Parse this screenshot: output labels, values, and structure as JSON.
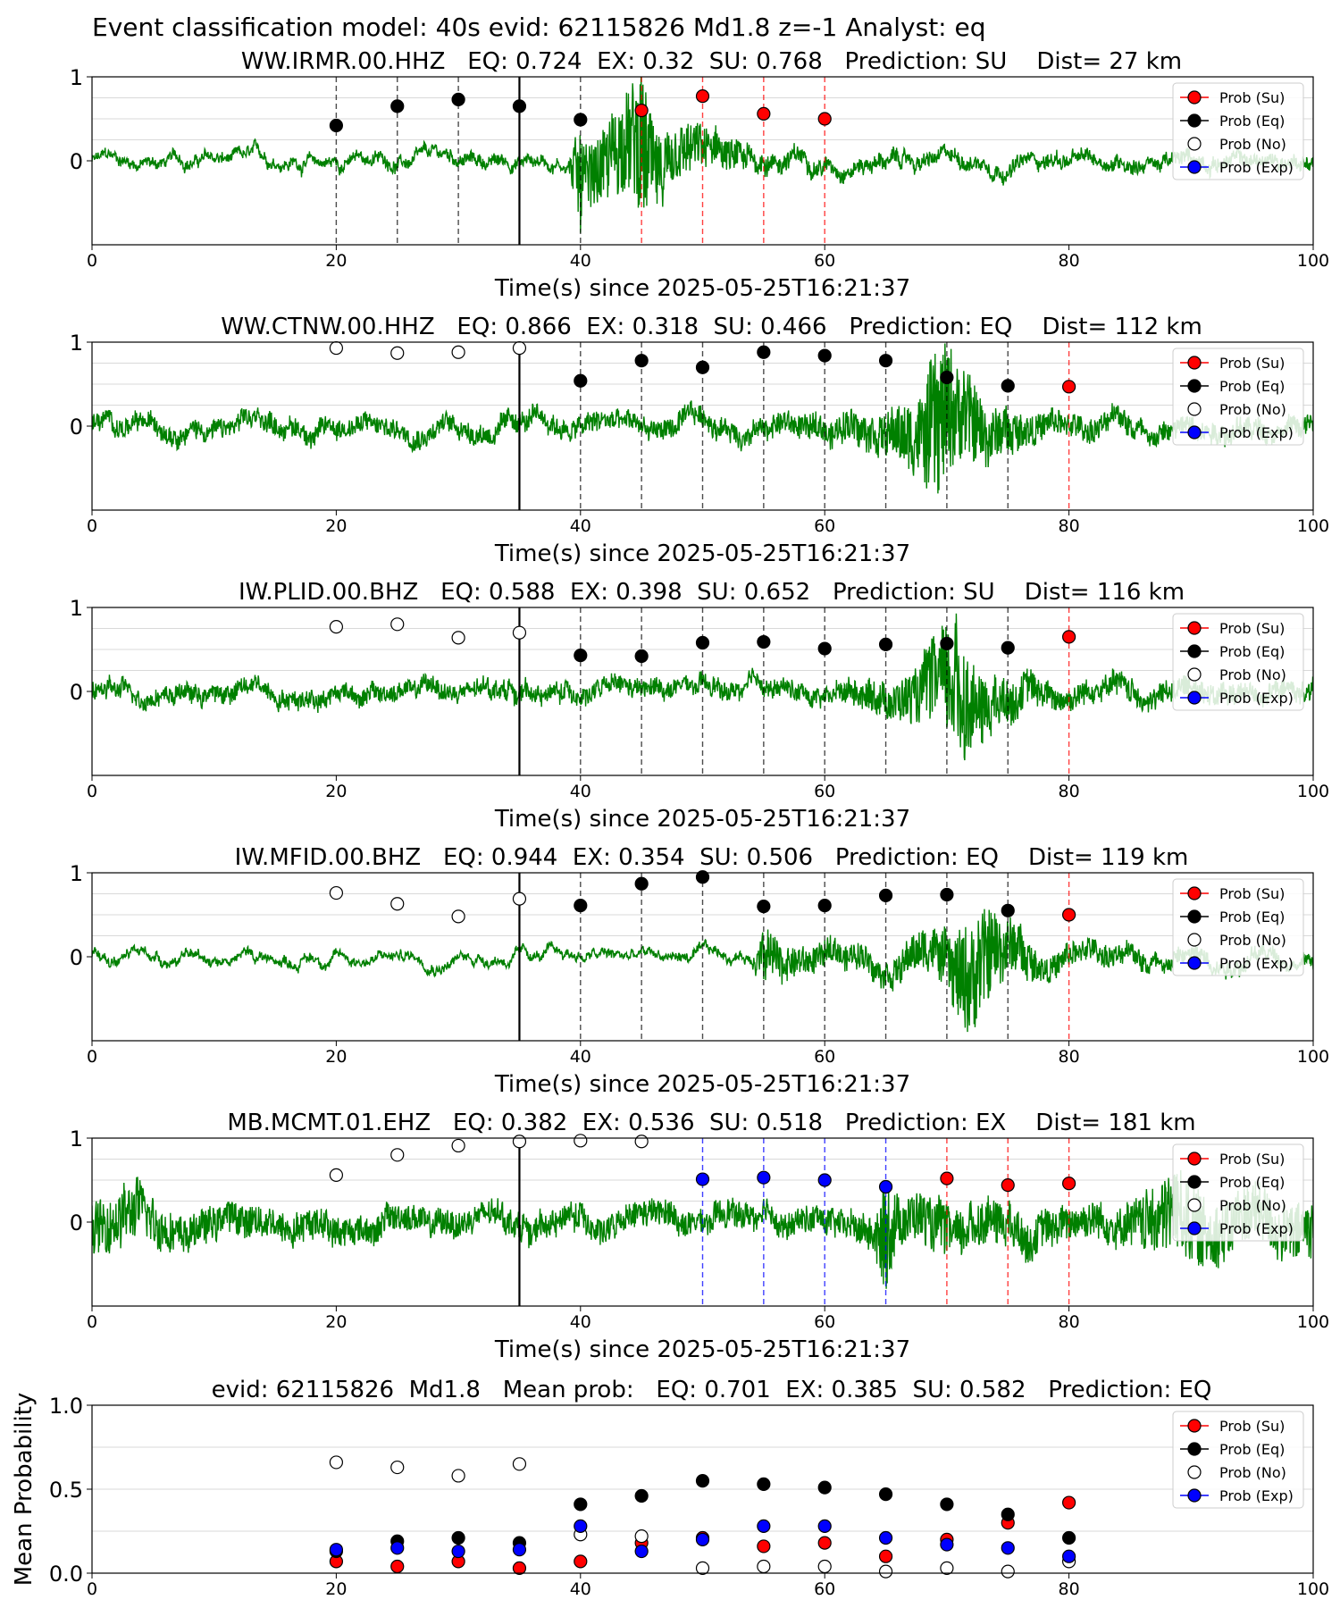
{
  "figure_title": "Event classification model: 40s evid: 62115826 Md1.8 z=-1 Analyst: eq",
  "legend_labels": [
    "Prob (Su)",
    "Prob (Eq)",
    "Prob (No)",
    "Prob (Exp)"
  ],
  "colors": {
    "waveform": "#008000",
    "su": "#ff0000",
    "eq": "#000000",
    "no": "#ffffff",
    "exp": "#0000ff",
    "arrival": "#000000",
    "grid": "#d9d9d9"
  },
  "chart_data": [
    {
      "type": "scatter",
      "title": "WW.IRMR.00.HHZ   EQ: 0.724  EX: 0.32  SU: 0.768   Prediction: SU    Dist= 27 km",
      "xlabel": "Time(s) since 2025-05-25T16:21:37",
      "ylabel": "",
      "xlim": [
        0,
        100
      ],
      "ylim": [
        -1,
        1
      ],
      "xticks": [
        "0",
        "20",
        "40",
        "60",
        "80",
        "100"
      ],
      "yticks": [
        "0",
        "1"
      ],
      "arrival_time": 35,
      "waveform": {
        "energy": [
          [
            0,
            0.05
          ],
          [
            39,
            0.06
          ],
          [
            40,
            0.6
          ],
          [
            41,
            0.35
          ],
          [
            42,
            0.45
          ],
          [
            43,
            0.55
          ],
          [
            44,
            0.6
          ],
          [
            45,
            0.9
          ],
          [
            46,
            0.5
          ],
          [
            48,
            0.35
          ],
          [
            50,
            0.25
          ],
          [
            55,
            0.12
          ],
          [
            60,
            0.08
          ],
          [
            100,
            0.07
          ]
        ]
      },
      "series": [
        {
          "name": "Prob (Su)",
          "x": [
            45,
            50,
            55,
            60
          ],
          "y": [
            0.6,
            0.77,
            0.56,
            0.5
          ]
        },
        {
          "name": "Prob (Eq)",
          "x": [
            20,
            25,
            30,
            35,
            40
          ],
          "y": [
            0.42,
            0.65,
            0.73,
            0.65,
            0.49
          ]
        },
        {
          "name": "Prob (No)",
          "x": [],
          "y": []
        },
        {
          "name": "Prob (Exp)",
          "x": [],
          "y": []
        }
      ],
      "vlines": [
        {
          "x": 20,
          "class": "eq"
        },
        {
          "x": 25,
          "class": "eq"
        },
        {
          "x": 30,
          "class": "eq"
        },
        {
          "x": 35,
          "class": "eq"
        },
        {
          "x": 40,
          "class": "eq"
        },
        {
          "x": 45,
          "class": "su"
        },
        {
          "x": 50,
          "class": "su"
        },
        {
          "x": 55,
          "class": "su"
        },
        {
          "x": 60,
          "class": "su"
        }
      ]
    },
    {
      "type": "scatter",
      "title": "WW.CTNW.00.HHZ   EQ: 0.866  EX: 0.318  SU: 0.466   Prediction: EQ    Dist= 112 km",
      "xlabel": "Time(s) since 2025-05-25T16:21:37",
      "ylabel": "",
      "xlim": [
        0,
        100
      ],
      "ylim": [
        -1,
        1
      ],
      "xticks": [
        "0",
        "20",
        "40",
        "60",
        "80",
        "100"
      ],
      "yticks": [
        "0",
        "1"
      ],
      "arrival_time": 35,
      "waveform": {
        "energy": [
          [
            0,
            0.1
          ],
          [
            55,
            0.12
          ],
          [
            60,
            0.15
          ],
          [
            65,
            0.25
          ],
          [
            68,
            0.5
          ],
          [
            69,
            0.9
          ],
          [
            70,
            0.8
          ],
          [
            71,
            0.6
          ],
          [
            72,
            0.5
          ],
          [
            74,
            0.3
          ],
          [
            78,
            0.15
          ],
          [
            100,
            0.1
          ]
        ]
      },
      "series": [
        {
          "name": "Prob (Su)",
          "x": [
            80
          ],
          "y": [
            0.47
          ]
        },
        {
          "name": "Prob (Eq)",
          "x": [
            40,
            45,
            50,
            55,
            60,
            65,
            70,
            75
          ],
          "y": [
            0.54,
            0.78,
            0.7,
            0.88,
            0.84,
            0.78,
            0.58,
            0.48
          ]
        },
        {
          "name": "Prob (No)",
          "x": [
            20,
            25,
            30,
            35
          ],
          "y": [
            0.93,
            0.87,
            0.88,
            0.93
          ]
        },
        {
          "name": "Prob (Exp)",
          "x": [],
          "y": []
        }
      ],
      "vlines": [
        {
          "x": 40,
          "class": "eq"
        },
        {
          "x": 45,
          "class": "eq"
        },
        {
          "x": 50,
          "class": "eq"
        },
        {
          "x": 55,
          "class": "eq"
        },
        {
          "x": 60,
          "class": "eq"
        },
        {
          "x": 65,
          "class": "eq"
        },
        {
          "x": 70,
          "class": "eq"
        },
        {
          "x": 75,
          "class": "eq"
        },
        {
          "x": 80,
          "class": "su"
        }
      ]
    },
    {
      "type": "scatter",
      "title": "IW.PLID.00.BHZ   EQ: 0.588  EX: 0.398  SU: 0.652   Prediction: SU    Dist= 116 km",
      "xlabel": "Time(s) since 2025-05-25T16:21:37",
      "ylabel": "",
      "xlim": [
        0,
        100
      ],
      "ylim": [
        -1,
        1
      ],
      "xticks": [
        "0",
        "20",
        "40",
        "60",
        "80",
        "100"
      ],
      "yticks": [
        "0",
        "1"
      ],
      "arrival_time": 35,
      "waveform": {
        "energy": [
          [
            0,
            0.1
          ],
          [
            60,
            0.1
          ],
          [
            65,
            0.2
          ],
          [
            68,
            0.35
          ],
          [
            70,
            0.7
          ],
          [
            71,
            0.9
          ],
          [
            72,
            0.5
          ],
          [
            74,
            0.3
          ],
          [
            78,
            0.15
          ],
          [
            100,
            0.1
          ]
        ]
      },
      "series": [
        {
          "name": "Prob (Su)",
          "x": [
            80
          ],
          "y": [
            0.65
          ]
        },
        {
          "name": "Prob (Eq)",
          "x": [
            40,
            45,
            50,
            55,
            60,
            65,
            70,
            75
          ],
          "y": [
            0.43,
            0.42,
            0.58,
            0.59,
            0.51,
            0.56,
            0.57,
            0.52
          ]
        },
        {
          "name": "Prob (No)",
          "x": [
            20,
            25,
            30,
            35
          ],
          "y": [
            0.77,
            0.8,
            0.64,
            0.7
          ]
        },
        {
          "name": "Prob (Exp)",
          "x": [],
          "y": []
        }
      ],
      "vlines": [
        {
          "x": 40,
          "class": "eq"
        },
        {
          "x": 45,
          "class": "eq"
        },
        {
          "x": 50,
          "class": "eq"
        },
        {
          "x": 55,
          "class": "eq"
        },
        {
          "x": 60,
          "class": "eq"
        },
        {
          "x": 65,
          "class": "eq"
        },
        {
          "x": 70,
          "class": "eq"
        },
        {
          "x": 75,
          "class": "eq"
        },
        {
          "x": 80,
          "class": "su"
        }
      ]
    },
    {
      "type": "scatter",
      "title": "IW.MFID.00.BHZ   EQ: 0.944  EX: 0.354  SU: 0.506   Prediction: EQ    Dist= 119 km",
      "xlabel": "Time(s) since 2025-05-25T16:21:37",
      "ylabel": "",
      "xlim": [
        0,
        100
      ],
      "ylim": [
        -1,
        1
      ],
      "xticks": [
        "0",
        "20",
        "40",
        "60",
        "80",
        "100"
      ],
      "yticks": [
        "0",
        "1"
      ],
      "arrival_time": 35,
      "waveform": {
        "energy": [
          [
            0,
            0.04
          ],
          [
            54,
            0.04
          ],
          [
            55,
            0.35
          ],
          [
            57,
            0.18
          ],
          [
            60,
            0.15
          ],
          [
            65,
            0.15
          ],
          [
            70,
            0.3
          ],
          [
            71,
            0.55
          ],
          [
            72,
            0.7
          ],
          [
            73,
            0.6
          ],
          [
            75,
            0.35
          ],
          [
            78,
            0.15
          ],
          [
            100,
            0.06
          ]
        ]
      },
      "series": [
        {
          "name": "Prob (Su)",
          "x": [
            80
          ],
          "y": [
            0.5
          ]
        },
        {
          "name": "Prob (Eq)",
          "x": [
            40,
            45,
            50,
            55,
            60,
            65,
            70,
            75
          ],
          "y": [
            0.61,
            0.87,
            0.95,
            0.6,
            0.61,
            0.73,
            0.74,
            0.55
          ]
        },
        {
          "name": "Prob (No)",
          "x": [
            20,
            25,
            30,
            35
          ],
          "y": [
            0.76,
            0.63,
            0.48,
            0.69
          ]
        },
        {
          "name": "Prob (Exp)",
          "x": [],
          "y": []
        }
      ],
      "vlines": [
        {
          "x": 40,
          "class": "eq"
        },
        {
          "x": 45,
          "class": "eq"
        },
        {
          "x": 50,
          "class": "eq"
        },
        {
          "x": 55,
          "class": "eq"
        },
        {
          "x": 60,
          "class": "eq"
        },
        {
          "x": 65,
          "class": "eq"
        },
        {
          "x": 70,
          "class": "eq"
        },
        {
          "x": 75,
          "class": "eq"
        },
        {
          "x": 80,
          "class": "su"
        }
      ]
    },
    {
      "type": "scatter",
      "title": "MB.MCMT.01.EHZ   EQ: 0.382  EX: 0.536  SU: 0.518   Prediction: EX    Dist= 181 km",
      "xlabel": "Time(s) since 2025-05-25T16:21:37",
      "ylabel": "",
      "xlim": [
        0,
        100
      ],
      "ylim": [
        -1,
        1
      ],
      "xticks": [
        "0",
        "20",
        "40",
        "60",
        "80",
        "100"
      ],
      "yticks": [
        "0",
        "1"
      ],
      "arrival_time": 35,
      "waveform": {
        "energy": [
          [
            0,
            0.3
          ],
          [
            3,
            0.35
          ],
          [
            8,
            0.2
          ],
          [
            30,
            0.15
          ],
          [
            60,
            0.15
          ],
          [
            64,
            0.2
          ],
          [
            65,
            0.7
          ],
          [
            66,
            0.3
          ],
          [
            70,
            0.3
          ],
          [
            75,
            0.25
          ],
          [
            80,
            0.2
          ],
          [
            85,
            0.25
          ],
          [
            88,
            0.5
          ],
          [
            90,
            0.5
          ],
          [
            93,
            0.35
          ],
          [
            100,
            0.35
          ]
        ]
      },
      "series": [
        {
          "name": "Prob (Su)",
          "x": [
            70,
            75,
            80
          ],
          "y": [
            0.52,
            0.44,
            0.46
          ]
        },
        {
          "name": "Prob (Eq)",
          "x": [],
          "y": []
        },
        {
          "name": "Prob (No)",
          "x": [
            20,
            25,
            30,
            35,
            40,
            45
          ],
          "y": [
            0.56,
            0.8,
            0.91,
            0.96,
            0.97,
            0.96
          ]
        },
        {
          "name": "Prob (Exp)",
          "x": [
            50,
            55,
            60,
            65
          ],
          "y": [
            0.51,
            0.53,
            0.5,
            0.42
          ]
        }
      ],
      "vlines": [
        {
          "x": 50,
          "class": "exp"
        },
        {
          "x": 55,
          "class": "exp"
        },
        {
          "x": 60,
          "class": "exp"
        },
        {
          "x": 65,
          "class": "exp"
        },
        {
          "x": 70,
          "class": "su"
        },
        {
          "x": 75,
          "class": "su"
        },
        {
          "x": 80,
          "class": "su"
        }
      ]
    },
    {
      "type": "scatter",
      "title": "evid: 62115826  Md1.8   Mean prob:   EQ: 0.701  EX: 0.385  SU: 0.582   Prediction: EQ",
      "xlabel": "",
      "ylabel": "Mean Probability",
      "xlim": [
        0,
        100
      ],
      "ylim": [
        0,
        1
      ],
      "xticks": [
        "0",
        "20",
        "40",
        "60",
        "80",
        "100"
      ],
      "yticks": [
        "0.0",
        "0.5",
        "1.0"
      ],
      "series": [
        {
          "name": "Prob (Su)",
          "x": [
            20,
            25,
            30,
            35,
            40,
            45,
            50,
            55,
            60,
            65,
            70,
            75,
            80
          ],
          "y": [
            0.07,
            0.04,
            0.07,
            0.03,
            0.07,
            0.18,
            0.21,
            0.16,
            0.18,
            0.1,
            0.2,
            0.3,
            0.42
          ]
        },
        {
          "name": "Prob (Eq)",
          "x": [
            20,
            25,
            30,
            35,
            40,
            45,
            50,
            55,
            60,
            65,
            70,
            75,
            80
          ],
          "y": [
            0.13,
            0.19,
            0.21,
            0.18,
            0.41,
            0.46,
            0.55,
            0.53,
            0.51,
            0.47,
            0.41,
            0.35,
            0.21
          ]
        },
        {
          "name": "Prob (No)",
          "x": [
            20,
            25,
            30,
            35,
            40,
            45,
            50,
            55,
            60,
            65,
            70,
            75,
            80
          ],
          "y": [
            0.66,
            0.63,
            0.58,
            0.65,
            0.23,
            0.22,
            0.03,
            0.04,
            0.04,
            0.01,
            0.03,
            0.01,
            0.07
          ]
        },
        {
          "name": "Prob (Exp)",
          "x": [
            20,
            25,
            30,
            35,
            40,
            45,
            50,
            55,
            60,
            65,
            70,
            75,
            80
          ],
          "y": [
            0.14,
            0.15,
            0.13,
            0.14,
            0.28,
            0.13,
            0.2,
            0.28,
            0.28,
            0.21,
            0.17,
            0.15,
            0.1
          ]
        }
      ]
    }
  ]
}
